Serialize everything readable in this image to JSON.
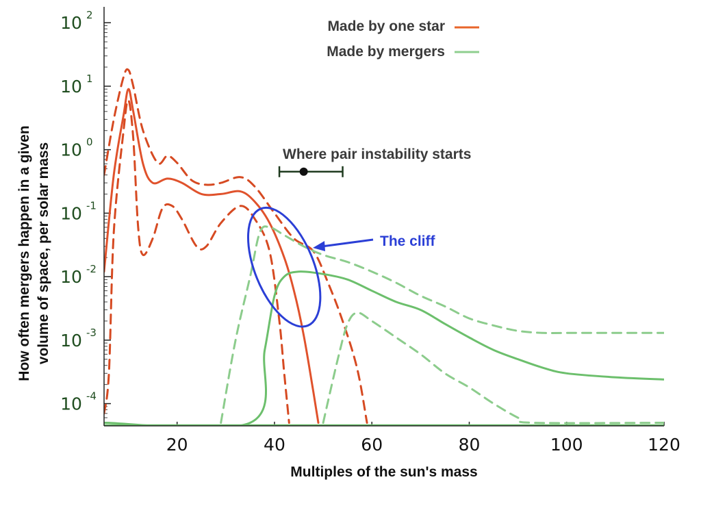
{
  "chart_data": {
    "type": "line",
    "title": "",
    "xlabel": "Multiples of the sun's mass",
    "ylabel_line1": "How often mergers happen in a given",
    "ylabel_line2": "volume of space, per solar mass",
    "xlim": [
      5,
      120
    ],
    "ylim_log10": [
      -4.35,
      2.25
    ],
    "y_scale": "log",
    "x_ticks": [
      {
        "value": 20,
        "label": "20"
      },
      {
        "value": 40,
        "label": "40"
      },
      {
        "value": 60,
        "label": "60"
      },
      {
        "value": 80,
        "label": "80"
      },
      {
        "value": 100,
        "label": "100"
      },
      {
        "value": 120,
        "label": "120"
      }
    ],
    "y_ticks": [
      {
        "exp": 2,
        "base": "10",
        "sup": "2"
      },
      {
        "exp": 1,
        "base": "10",
        "sup": "1"
      },
      {
        "exp": 0,
        "base": "10",
        "sup": "0"
      },
      {
        "exp": -1,
        "base": "10",
        "sup": "-1"
      },
      {
        "exp": -2,
        "base": "10",
        "sup": "-2"
      },
      {
        "exp": -3,
        "base": "10",
        "sup": "-3"
      },
      {
        "exp": -4,
        "base": "10",
        "sup": "-4"
      }
    ],
    "legend": {
      "placement": "top-center",
      "entries": [
        {
          "label": "Made by one star",
          "color": "#e8652a"
        },
        {
          "label": "Made by mergers",
          "color": "#8fcf8f"
        }
      ]
    },
    "series": [
      {
        "name": "Made by one star",
        "group": "one_star",
        "style": "solid",
        "color": "#e0522c",
        "points": [
          [
            5,
            0.012
          ],
          [
            7,
            0.4
          ],
          [
            9,
            3.5
          ],
          [
            10,
            9
          ],
          [
            11,
            4
          ],
          [
            13,
            0.6
          ],
          [
            15,
            0.3
          ],
          [
            18,
            0.35
          ],
          [
            21,
            0.3
          ],
          [
            25,
            0.2
          ],
          [
            29,
            0.2
          ],
          [
            33,
            0.22
          ],
          [
            36,
            0.15
          ],
          [
            39,
            0.07
          ],
          [
            42,
            0.02
          ],
          [
            44,
            0.006
          ],
          [
            46,
            0.0012
          ],
          [
            48,
            0.00015
          ],
          [
            49,
            5e-05
          ]
        ]
      },
      {
        "name": "",
        "group": "one_star",
        "style": "dashed",
        "color": "#d64a22",
        "points": [
          [
            5,
            0.4
          ],
          [
            7,
            3
          ],
          [
            9,
            14
          ],
          [
            10,
            18
          ],
          [
            11,
            10
          ],
          [
            13,
            2
          ],
          [
            16,
            0.62
          ],
          [
            18,
            0.8
          ],
          [
            20,
            0.62
          ],
          [
            23,
            0.33
          ],
          [
            26,
            0.28
          ],
          [
            29,
            0.3
          ],
          [
            33,
            0.37
          ],
          [
            36,
            0.26
          ],
          [
            40,
            0.1
          ],
          [
            44,
            0.04
          ],
          [
            48,
            0.025
          ],
          [
            51,
            0.008
          ],
          [
            54,
            0.002
          ],
          [
            57,
            0.00035
          ],
          [
            59,
            5e-05
          ]
        ]
      },
      {
        "name": "",
        "group": "one_star",
        "style": "dashed",
        "color": "#d64a22",
        "points": [
          [
            5,
            7e-05
          ],
          [
            6,
            0.0003
          ],
          [
            7,
            0.05
          ],
          [
            9,
            2
          ],
          [
            10,
            6
          ],
          [
            11,
            1.5
          ],
          [
            12,
            0.06
          ],
          [
            13,
            0.022
          ],
          [
            15,
            0.04
          ],
          [
            17,
            0.12
          ],
          [
            19,
            0.13
          ],
          [
            21,
            0.08
          ],
          [
            24,
            0.03
          ],
          [
            26,
            0.03
          ],
          [
            29,
            0.07
          ],
          [
            33,
            0.13
          ],
          [
            36,
            0.08
          ],
          [
            39,
            0.025
          ],
          [
            41,
            0.002
          ],
          [
            42,
            0.0003
          ],
          [
            43,
            5e-05
          ]
        ]
      },
      {
        "name": "Made by mergers",
        "group": "mergers",
        "style": "solid",
        "color": "#6cbf6c",
        "points": [
          [
            5,
            5e-05
          ],
          [
            35,
            5e-05
          ],
          [
            38,
            0.0007
          ],
          [
            40,
            0.005
          ],
          [
            42,
            0.01
          ],
          [
            45,
            0.012
          ],
          [
            50,
            0.011
          ],
          [
            55,
            0.009
          ],
          [
            60,
            0.006
          ],
          [
            65,
            0.004
          ],
          [
            70,
            0.003
          ],
          [
            75,
            0.0018
          ],
          [
            80,
            0.0011
          ],
          [
            85,
            0.0007
          ],
          [
            90,
            0.0005
          ],
          [
            95,
            0.00037
          ],
          [
            100,
            0.0003
          ],
          [
            110,
            0.00026
          ],
          [
            120,
            0.00024
          ]
        ]
      },
      {
        "name": "",
        "group": "mergers",
        "style": "dashed",
        "color": "#8ccc8c",
        "points": [
          [
            29,
            5e-05
          ],
          [
            32,
            0.001
          ],
          [
            35,
            0.01
          ],
          [
            37,
            0.05
          ],
          [
            39,
            0.06
          ],
          [
            42,
            0.045
          ],
          [
            46,
            0.03
          ],
          [
            50,
            0.022
          ],
          [
            55,
            0.017
          ],
          [
            60,
            0.012
          ],
          [
            65,
            0.008
          ],
          [
            70,
            0.005
          ],
          [
            75,
            0.0034
          ],
          [
            80,
            0.0022
          ],
          [
            85,
            0.0017
          ],
          [
            90,
            0.0014
          ],
          [
            95,
            0.0013
          ],
          [
            100,
            0.0013
          ],
          [
            110,
            0.0013
          ],
          [
            120,
            0.0013
          ]
        ]
      },
      {
        "name": "",
        "group": "mergers",
        "style": "dashed",
        "color": "#8ccc8c",
        "points": [
          [
            50,
            5e-05
          ],
          [
            53,
            0.0005
          ],
          [
            55,
            0.0018
          ],
          [
            57,
            0.0027
          ],
          [
            60,
            0.002
          ],
          [
            65,
            0.0011
          ],
          [
            70,
            0.0006
          ],
          [
            75,
            0.0003
          ],
          [
            80,
            0.00018
          ],
          [
            85,
            0.0001
          ],
          [
            90,
            6e-05
          ],
          [
            93,
            5e-05
          ],
          [
            120,
            5e-05
          ]
        ]
      }
    ],
    "annotations": {
      "pair_instability": {
        "label": "Where pair instability starts",
        "x": 46,
        "xerr_low": 41,
        "xerr_high": 54,
        "y": 0.45
      },
      "cliff": {
        "label": "The cliff",
        "center_x": 42,
        "center_y": 0.011,
        "color": "#2b3fd6"
      }
    }
  }
}
